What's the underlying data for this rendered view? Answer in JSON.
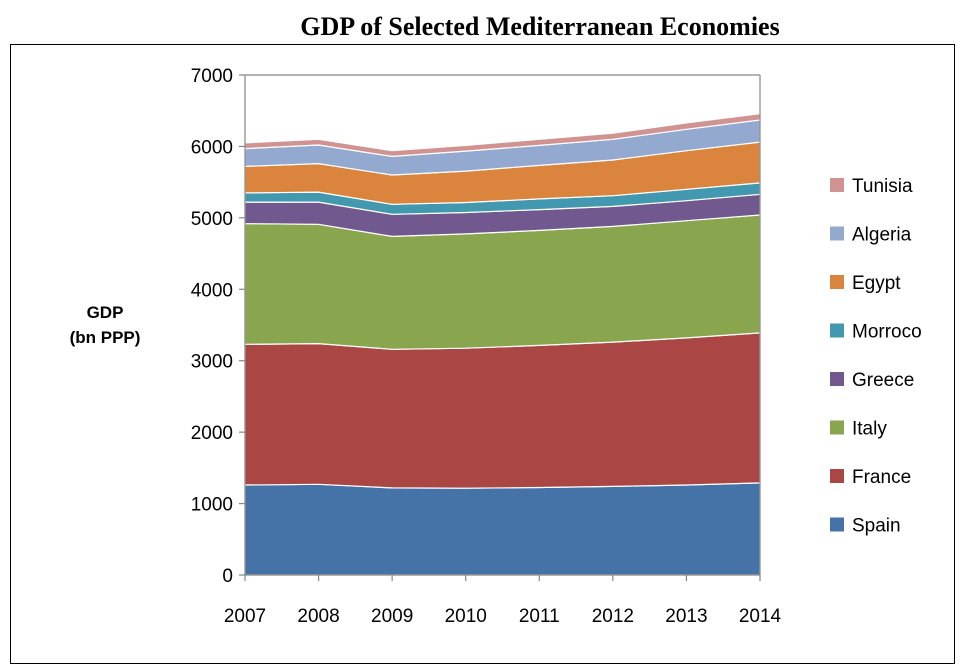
{
  "chart_data": {
    "type": "area",
    "stacked": true,
    "title": "GDP of Selected Mediterranean Economies",
    "ylabel_line1": "GDP",
    "ylabel_line2": "(bn PPP)",
    "xlabel": "",
    "ylim": [
      0,
      7000
    ],
    "yticks": [
      0,
      1000,
      2000,
      3000,
      4000,
      5000,
      6000,
      7000
    ],
    "x": [
      "2007",
      "2008",
      "2009",
      "2010",
      "2011",
      "2012",
      "2013",
      "2014"
    ],
    "legend_position": "right",
    "series": [
      {
        "name": "Spain",
        "color": "#4572A7",
        "values": [
          1260,
          1270,
          1220,
          1215,
          1225,
          1240,
          1260,
          1290
        ]
      },
      {
        "name": "France",
        "color": "#AA4643",
        "values": [
          1970,
          1970,
          1940,
          1960,
          1990,
          2020,
          2060,
          2100
        ]
      },
      {
        "name": "Italy",
        "color": "#89A54E",
        "values": [
          1690,
          1670,
          1580,
          1600,
          1610,
          1620,
          1640,
          1650
        ]
      },
      {
        "name": "Greece",
        "color": "#71588F",
        "values": [
          300,
          310,
          310,
          300,
          290,
          280,
          280,
          290
        ]
      },
      {
        "name": "Morroco",
        "color": "#4198AF",
        "values": [
          130,
          140,
          140,
          140,
          150,
          150,
          160,
          160
        ]
      },
      {
        "name": "Egypt",
        "color": "#DB843D",
        "values": [
          370,
          400,
          410,
          440,
          470,
          500,
          540,
          570
        ]
      },
      {
        "name": "Algeria",
        "color": "#93A9CF",
        "values": [
          250,
          260,
          260,
          280,
          280,
          290,
          300,
          310
        ]
      },
      {
        "name": "Tunisia",
        "color": "#D19392",
        "values": [
          80,
          80,
          80,
          80,
          85,
          85,
          90,
          90
        ]
      }
    ]
  }
}
